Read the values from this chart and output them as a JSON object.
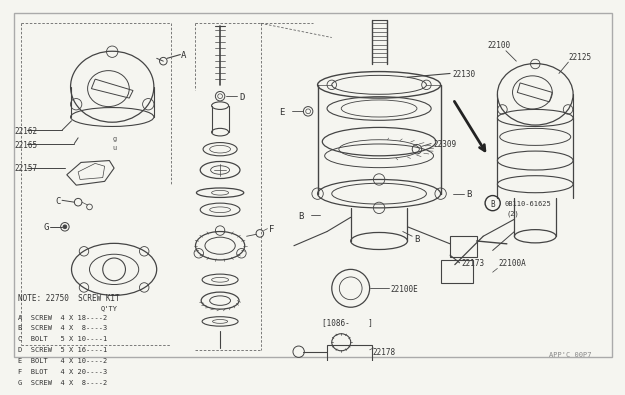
{
  "background_color": "#f5f5f0",
  "line_color": "#444444",
  "text_color": "#333333",
  "figcode": "APP'C 00P7",
  "note_lines": [
    "NOTE: 22750  SCREW KIT",
    "                      Q'TY",
    "A  SCREW  4 X 18----2",
    "B  SCREW  4 X  8----3",
    "C  BOLT   5 X 10----1",
    "D  SCREW  5 X 16----1",
    "E  BOLT   4 X 10----2",
    "F  BLOT   4 X 20----3",
    "G  SCREW  4 X  8----2"
  ],
  "border_color": "#999999",
  "dashed_color": "#666666"
}
